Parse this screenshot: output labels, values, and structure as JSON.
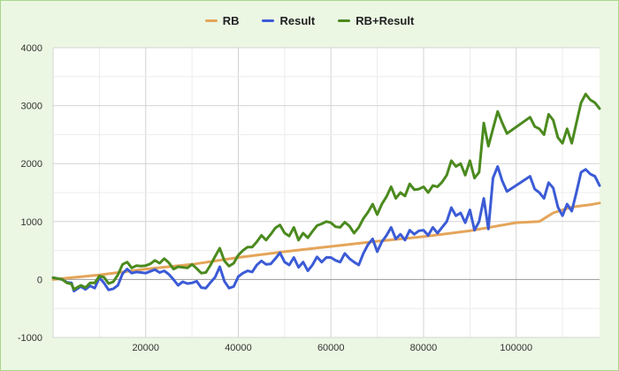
{
  "chart_data": {
    "type": "line",
    "title": "",
    "xlabel": "",
    "ylabel": "",
    "xlim": [
      0,
      118000
    ],
    "ylim": [
      -1000,
      4000
    ],
    "grid": true,
    "legend_position": "top",
    "x_ticks": [
      "20000",
      "40000",
      "60000",
      "80000",
      "100000"
    ],
    "y_ticks": [
      "-1000",
      "0",
      "1000",
      "2000",
      "3000",
      "4000"
    ],
    "series": [
      {
        "name": "RB",
        "color": "#e4a55a",
        "points": [
          [
            0,
            0
          ],
          [
            10000,
            80
          ],
          [
            20000,
            180
          ],
          [
            30000,
            260
          ],
          [
            40000,
            380
          ],
          [
            50000,
            480
          ],
          [
            60000,
            570
          ],
          [
            70000,
            660
          ],
          [
            80000,
            740
          ],
          [
            90000,
            840
          ],
          [
            100000,
            980
          ],
          [
            105000,
            1000
          ],
          [
            108000,
            1150
          ],
          [
            112000,
            1250
          ],
          [
            116000,
            1290
          ],
          [
            118000,
            1320
          ]
        ]
      },
      {
        "name": "Result",
        "color": "#3b5bd6",
        "points": [
          [
            0,
            30
          ],
          [
            2000,
            0
          ],
          [
            3000,
            -50
          ],
          [
            4000,
            -60
          ],
          [
            4500,
            -200
          ],
          [
            6000,
            -120
          ],
          [
            7000,
            -170
          ],
          [
            8000,
            -110
          ],
          [
            9000,
            -150
          ],
          [
            10000,
            30
          ],
          [
            11000,
            -60
          ],
          [
            12000,
            -180
          ],
          [
            13000,
            -160
          ],
          [
            14000,
            -100
          ],
          [
            15000,
            100
          ],
          [
            16000,
            180
          ],
          [
            17000,
            110
          ],
          [
            18000,
            130
          ],
          [
            19000,
            120
          ],
          [
            20000,
            110
          ],
          [
            21000,
            140
          ],
          [
            22000,
            170
          ],
          [
            23000,
            120
          ],
          [
            24000,
            150
          ],
          [
            25000,
            90
          ],
          [
            26000,
            0
          ],
          [
            27000,
            -100
          ],
          [
            28000,
            -40
          ],
          [
            29000,
            -70
          ],
          [
            30000,
            -60
          ],
          [
            31000,
            -30
          ],
          [
            32000,
            -140
          ],
          [
            33000,
            -150
          ],
          [
            34000,
            -50
          ],
          [
            35000,
            40
          ],
          [
            36000,
            220
          ],
          [
            37000,
            -30
          ],
          [
            38000,
            -150
          ],
          [
            39000,
            -120
          ],
          [
            40000,
            50
          ],
          [
            41000,
            110
          ],
          [
            42000,
            150
          ],
          [
            43000,
            130
          ],
          [
            44000,
            250
          ],
          [
            45000,
            320
          ],
          [
            46000,
            260
          ],
          [
            47000,
            270
          ],
          [
            48000,
            360
          ],
          [
            49000,
            460
          ],
          [
            50000,
            300
          ],
          [
            51000,
            250
          ],
          [
            52000,
            380
          ],
          [
            53000,
            210
          ],
          [
            54000,
            300
          ],
          [
            55000,
            150
          ],
          [
            56000,
            250
          ],
          [
            57000,
            390
          ],
          [
            58000,
            300
          ],
          [
            59000,
            380
          ],
          [
            60000,
            380
          ],
          [
            61000,
            330
          ],
          [
            62000,
            300
          ],
          [
            63000,
            450
          ],
          [
            64000,
            360
          ],
          [
            65000,
            300
          ],
          [
            66000,
            250
          ],
          [
            67000,
            450
          ],
          [
            68000,
            600
          ],
          [
            69000,
            700
          ],
          [
            70000,
            480
          ],
          [
            71000,
            650
          ],
          [
            72000,
            760
          ],
          [
            73000,
            900
          ],
          [
            74000,
            700
          ],
          [
            75000,
            780
          ],
          [
            76000,
            680
          ],
          [
            77000,
            850
          ],
          [
            78000,
            780
          ],
          [
            79000,
            840
          ],
          [
            80000,
            850
          ],
          [
            81000,
            760
          ],
          [
            82000,
            900
          ],
          [
            83000,
            800
          ],
          [
            84000,
            900
          ],
          [
            85000,
            1000
          ],
          [
            86000,
            1240
          ],
          [
            87000,
            1100
          ],
          [
            88000,
            1150
          ],
          [
            89000,
            980
          ],
          [
            90000,
            1200
          ],
          [
            91000,
            850
          ],
          [
            92000,
            1000
          ],
          [
            93000,
            1400
          ],
          [
            94000,
            870
          ],
          [
            95000,
            1750
          ],
          [
            96000,
            1950
          ],
          [
            97000,
            1700
          ],
          [
            98000,
            1520
          ],
          [
            103000,
            1780
          ],
          [
            104000,
            1560
          ],
          [
            105000,
            1500
          ],
          [
            106000,
            1400
          ],
          [
            107000,
            1670
          ],
          [
            108000,
            1580
          ],
          [
            109000,
            1250
          ],
          [
            110000,
            1100
          ],
          [
            111000,
            1300
          ],
          [
            112000,
            1180
          ],
          [
            113000,
            1500
          ],
          [
            114000,
            1850
          ],
          [
            115000,
            1900
          ],
          [
            116000,
            1820
          ],
          [
            117000,
            1780
          ],
          [
            118000,
            1620
          ]
        ]
      },
      {
        "name": "RB+Result",
        "color": "#4b8a1e",
        "points": [
          [
            0,
            30
          ],
          [
            2000,
            0
          ],
          [
            3000,
            -60
          ],
          [
            4000,
            -80
          ],
          [
            4500,
            -170
          ],
          [
            6000,
            -100
          ],
          [
            7000,
            -140
          ],
          [
            8000,
            -60
          ],
          [
            9000,
            -60
          ],
          [
            10000,
            60
          ],
          [
            11000,
            40
          ],
          [
            12000,
            -70
          ],
          [
            13000,
            -40
          ],
          [
            14000,
            80
          ],
          [
            15000,
            260
          ],
          [
            16000,
            300
          ],
          [
            17000,
            200
          ],
          [
            18000,
            240
          ],
          [
            19000,
            230
          ],
          [
            20000,
            240
          ],
          [
            21000,
            270
          ],
          [
            22000,
            330
          ],
          [
            23000,
            280
          ],
          [
            24000,
            360
          ],
          [
            25000,
            290
          ],
          [
            26000,
            180
          ],
          [
            27000,
            220
          ],
          [
            28000,
            210
          ],
          [
            29000,
            200
          ],
          [
            30000,
            260
          ],
          [
            31000,
            190
          ],
          [
            32000,
            110
          ],
          [
            33000,
            120
          ],
          [
            34000,
            250
          ],
          [
            35000,
            400
          ],
          [
            36000,
            540
          ],
          [
            37000,
            320
          ],
          [
            38000,
            230
          ],
          [
            39000,
            280
          ],
          [
            40000,
            420
          ],
          [
            41000,
            500
          ],
          [
            42000,
            560
          ],
          [
            43000,
            560
          ],
          [
            44000,
            650
          ],
          [
            45000,
            760
          ],
          [
            46000,
            680
          ],
          [
            47000,
            780
          ],
          [
            48000,
            890
          ],
          [
            49000,
            940
          ],
          [
            50000,
            800
          ],
          [
            51000,
            750
          ],
          [
            52000,
            900
          ],
          [
            53000,
            680
          ],
          [
            54000,
            800
          ],
          [
            55000,
            720
          ],
          [
            56000,
            830
          ],
          [
            57000,
            930
          ],
          [
            58000,
            960
          ],
          [
            59000,
            1000
          ],
          [
            60000,
            980
          ],
          [
            61000,
            910
          ],
          [
            62000,
            900
          ],
          [
            63000,
            990
          ],
          [
            64000,
            920
          ],
          [
            65000,
            800
          ],
          [
            66000,
            900
          ],
          [
            67000,
            1050
          ],
          [
            68000,
            1160
          ],
          [
            69000,
            1300
          ],
          [
            70000,
            1120
          ],
          [
            71000,
            1300
          ],
          [
            72000,
            1430
          ],
          [
            73000,
            1600
          ],
          [
            74000,
            1400
          ],
          [
            75000,
            1500
          ],
          [
            76000,
            1440
          ],
          [
            77000,
            1650
          ],
          [
            78000,
            1550
          ],
          [
            79000,
            1560
          ],
          [
            80000,
            1600
          ],
          [
            81000,
            1500
          ],
          [
            82000,
            1620
          ],
          [
            83000,
            1600
          ],
          [
            84000,
            1680
          ],
          [
            85000,
            1800
          ],
          [
            86000,
            2050
          ],
          [
            87000,
            1950
          ],
          [
            88000,
            2000
          ],
          [
            89000,
            1800
          ],
          [
            90000,
            2050
          ],
          [
            91000,
            1750
          ],
          [
            92000,
            1850
          ],
          [
            93000,
            2700
          ],
          [
            94000,
            2300
          ],
          [
            95000,
            2600
          ],
          [
            96000,
            2900
          ],
          [
            97000,
            2700
          ],
          [
            98000,
            2520
          ],
          [
            103000,
            2800
          ],
          [
            104000,
            2640
          ],
          [
            105000,
            2600
          ],
          [
            106000,
            2500
          ],
          [
            107000,
            2850
          ],
          [
            108000,
            2750
          ],
          [
            109000,
            2450
          ],
          [
            110000,
            2350
          ],
          [
            111000,
            2600
          ],
          [
            112000,
            2350
          ],
          [
            113000,
            2700
          ],
          [
            114000,
            3050
          ],
          [
            115000,
            3200
          ],
          [
            116000,
            3100
          ],
          [
            117000,
            3050
          ],
          [
            118000,
            2950
          ]
        ]
      }
    ]
  }
}
